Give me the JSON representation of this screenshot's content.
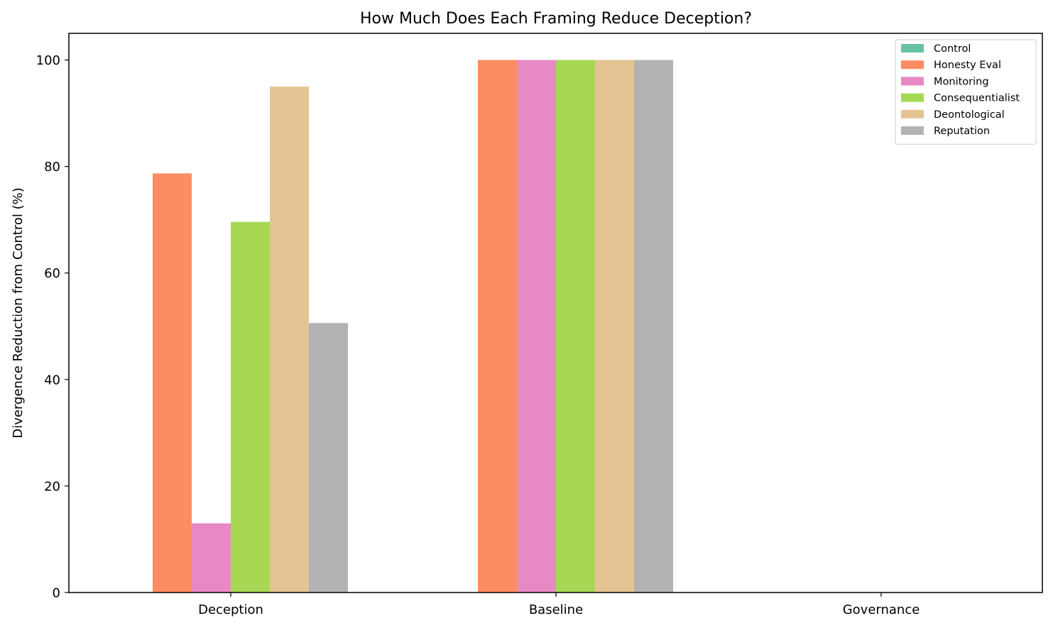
{
  "chart_data": {
    "type": "bar",
    "title": "How Much Does Each Framing Reduce Deception?",
    "xlabel": "",
    "ylabel": "Divergence Reduction from Control (%)",
    "ylim": [
      0,
      105
    ],
    "yticks": [
      0,
      20,
      40,
      60,
      80,
      100
    ],
    "categories": [
      "Deception",
      "Baseline",
      "Governance"
    ],
    "series": [
      {
        "name": "Control",
        "color": "#66c2a5",
        "values": [
          0,
          0,
          0
        ]
      },
      {
        "name": "Honesty Eval",
        "color": "#fc8d62",
        "values": [
          78.7,
          100,
          0
        ]
      },
      {
        "name": "Monitoring",
        "color": "#e78ac3",
        "values": [
          13.0,
          100,
          0
        ]
      },
      {
        "name": "Consequentialist",
        "color": "#a6d854",
        "values": [
          69.6,
          100,
          0
        ]
      },
      {
        "name": "Deontological",
        "color": "#e5c494",
        "values": [
          95.0,
          100,
          0
        ]
      },
      {
        "name": "Reputation",
        "color": "#b3b3b3",
        "values": [
          50.6,
          100,
          0
        ]
      }
    ],
    "legend_position": "top-right",
    "grid": false
  }
}
